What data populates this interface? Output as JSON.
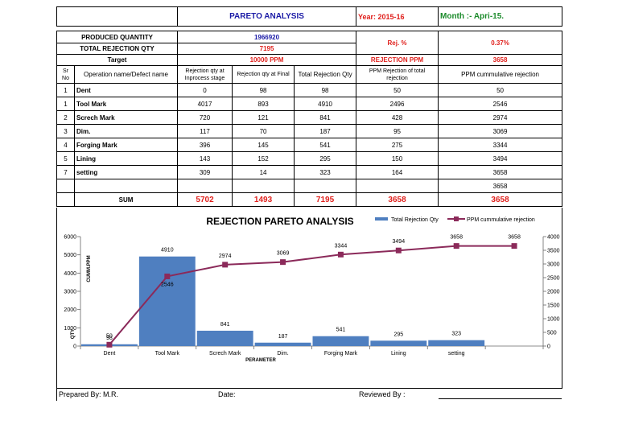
{
  "header": {
    "title": "PARETO ANALYSIS",
    "year": "Year: 2015-16",
    "month": "Month :- Apri-15."
  },
  "summary": {
    "produced_label": "PRODUCED QUANTITY",
    "produced_value": "1966920",
    "total_rej_label": "TOTAL REJECTION QTY",
    "total_rej_value": "7195",
    "target_label": "Target",
    "target_value": "10000 PPM",
    "rej_pct_label": "Rej. %",
    "rej_pct_value": "0.37%",
    "rej_ppm_label": "REJECTION PPM",
    "rej_ppm_value": "3658"
  },
  "columns": [
    "Sr No",
    "Operation name/Defect name",
    "Rejection qty at Inprocess stage",
    "Rejection qty at Final",
    "Total Rejection Qty",
    "PPM Rejection of total rejection",
    "PPM cummulative rejection"
  ],
  "rows": [
    {
      "sr": "1",
      "name": "Dent",
      "inprocess": "0",
      "final": "98",
      "total": "98",
      "ppm": "50",
      "cum": "50"
    },
    {
      "sr": "1",
      "name": "Tool Mark",
      "inprocess": "4017",
      "final": "893",
      "total": "4910",
      "ppm": "2496",
      "cum": "2546"
    },
    {
      "sr": "2",
      "name": "Screch Mark",
      "inprocess": "720",
      "final": "121",
      "total": "841",
      "ppm": "428",
      "cum": "2974"
    },
    {
      "sr": "3",
      "name": "Dim.",
      "inprocess": "117",
      "final": "70",
      "total": "187",
      "ppm": "95",
      "cum": "3069"
    },
    {
      "sr": "4",
      "name": "Forging Mark",
      "inprocess": "396",
      "final": "145",
      "total": "541",
      "ppm": "275",
      "cum": "3344"
    },
    {
      "sr": "5",
      "name": "Lining",
      "inprocess": "143",
      "final": "152",
      "total": "295",
      "ppm": "150",
      "cum": "3494"
    },
    {
      "sr": "7",
      "name": "setting",
      "inprocess": "309",
      "final": "14",
      "total": "323",
      "ppm": "164",
      "cum": "3658"
    }
  ],
  "extra_cum": "3658",
  "sum": {
    "label": "SUM",
    "inprocess": "5702",
    "final": "1493",
    "total": "7195",
    "ppm": "3658",
    "cum": "3658"
  },
  "chart_data": {
    "type": "bar",
    "title": "REJECTION PARETO ANALYSIS",
    "categories": [
      "Dent",
      "Tool Mark",
      "Screch Mark",
      "Dim.",
      "Forging Mark",
      "Lining",
      "setting"
    ],
    "series": [
      {
        "name": "Total Rejection Qty",
        "type": "bar",
        "axis": "left",
        "values": [
          98,
          4910,
          841,
          187,
          541,
          295,
          323
        ]
      },
      {
        "name": "PPM cummulative rejection",
        "type": "line",
        "axis": "right",
        "values": [
          50,
          2546,
          2974,
          3069,
          3344,
          3494,
          3658
        ],
        "point_labels": [
          "50",
          "2546",
          "2974",
          "3069",
          "3344",
          "3494",
          "3658"
        ]
      }
    ],
    "extra_point_label": "3658",
    "extra_point_value": 3658,
    "xlabel": "PERAMETER",
    "ylabel_left": "QTY",
    "ylabel_right_inner": "CUMM.PPM",
    "ylim_left": [
      0,
      6000
    ],
    "yticks_left": [
      "0",
      "1000",
      "2000",
      "3000",
      "4000",
      "5000",
      "6000"
    ],
    "ylim_right": [
      0,
      4000
    ],
    "yticks_right": [
      "0",
      "500",
      "1000",
      "1500",
      "2000",
      "2500",
      "3000",
      "3500",
      "4000"
    ],
    "legend": "top-right",
    "colors": {
      "bar": "#4f7fc0",
      "line": "#8b2a5a"
    }
  },
  "footer": {
    "prepared": "Prepared By: M.R.",
    "date": "Date:",
    "reviewed": "Reviewed By :"
  }
}
